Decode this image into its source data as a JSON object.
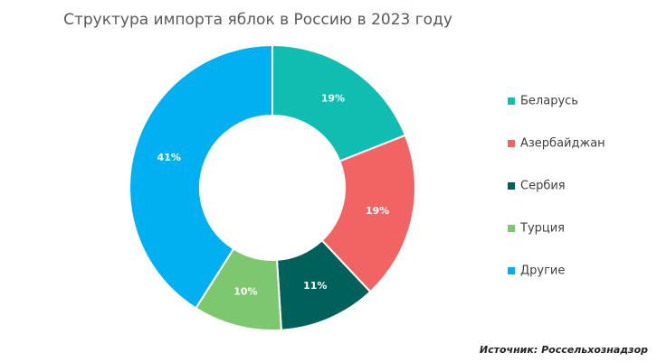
{
  "chart_data": {
    "type": "pie",
    "title": "Структура импорта яблок в Россию в 2023 году",
    "categories": [
      "Беларусь",
      "Азербайджан",
      "Сербия",
      "Турция",
      "Другие"
    ],
    "values": [
      19,
      19,
      11,
      10,
      41
    ],
    "value_labels": [
      "19%",
      "19%",
      "11%",
      "10%",
      "41%"
    ],
    "colors": [
      "#0fbdb1",
      "#f26464",
      "#00605a",
      "#7dc86f",
      "#00b0f0"
    ],
    "donut": true,
    "legend": "right",
    "source": "Источник: Россельхознадзор"
  }
}
